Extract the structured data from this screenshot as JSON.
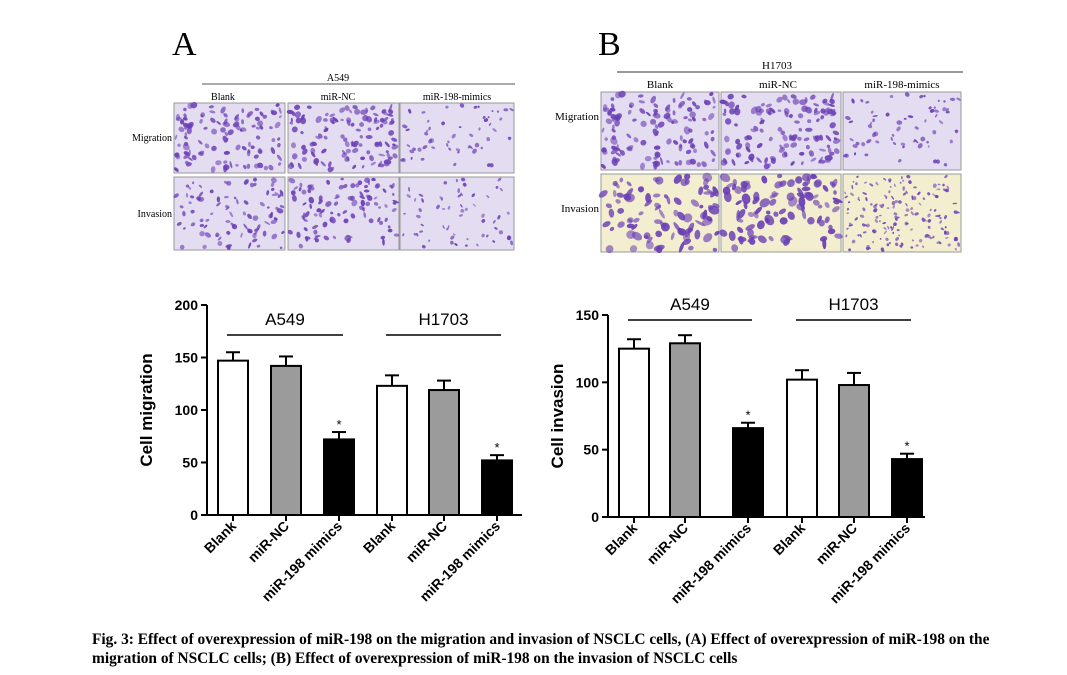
{
  "panels": {
    "a": {
      "letter": "A",
      "cell_line": "A549",
      "conditions": [
        "Blank",
        "miR-NC",
        "miR-198-mimics"
      ],
      "rows": [
        "Migration",
        "Invasion"
      ]
    },
    "b": {
      "letter": "B",
      "cell_line": "H1703",
      "conditions": [
        "Blank",
        "miR-NC",
        "miR-198-mimics"
      ],
      "rows": [
        "Migration",
        "Invasion"
      ]
    }
  },
  "colors": {
    "stain": "#6a3fb5",
    "background_light": "#e4dcf0",
    "background_yellow": "#f3eecf",
    "grey_bar": "#9b9b9b",
    "black_bar": "#000000",
    "white_bar": "#ffffff"
  },
  "chart_data": [
    {
      "type": "bar",
      "ylabel": "Cell migration",
      "ylim": [
        0,
        200
      ],
      "yticks": [
        0,
        50,
        100,
        150,
        200
      ],
      "categories": [
        "Blank",
        "miR-NC",
        "miR-198 mimics",
        "Blank",
        "miR-NC",
        "miR-198 mimics"
      ],
      "groups": [
        {
          "label": "A549",
          "categories": [
            "Blank",
            "miR-NC",
            "miR-198 mimics"
          ]
        },
        {
          "label": "H1703",
          "categories": [
            "Blank",
            "miR-NC",
            "miR-198 mimics"
          ]
        }
      ],
      "values": [
        147,
        142,
        72,
        123,
        119,
        52
      ],
      "errors": [
        8,
        9,
        7,
        10,
        9,
        5
      ],
      "fills": [
        "white",
        "grey",
        "black",
        "white",
        "grey",
        "black"
      ],
      "significance": [
        "",
        "",
        "*",
        "",
        "",
        "*"
      ]
    },
    {
      "type": "bar",
      "ylabel": "Cell invasion",
      "ylim": [
        0,
        150
      ],
      "yticks": [
        0,
        50,
        100,
        150
      ],
      "categories": [
        "Blank",
        "miR-NC",
        "miR-198 mimics",
        "Blank",
        "miR-NC",
        "miR-198 mimics"
      ],
      "groups": [
        {
          "label": "A549",
          "categories": [
            "Blank",
            "miR-NC",
            "miR-198 mimics"
          ]
        },
        {
          "label": "H1703",
          "categories": [
            "Blank",
            "miR-NC",
            "miR-198 mimics"
          ]
        }
      ],
      "values": [
        125,
        129,
        66,
        102,
        98,
        43
      ],
      "errors": [
        7,
        6,
        4,
        7,
        9,
        4
      ],
      "fills": [
        "white",
        "grey",
        "black",
        "white",
        "grey",
        "black"
      ],
      "significance": [
        "",
        "",
        "*",
        "",
        "",
        "*"
      ]
    }
  ],
  "caption": "Fig. 3: Effect of overexpression of miR-198 on the migration and invasion of NSCLC cells, (A) Effect of overexpression of miR-198 on the migration of NSCLC cells; (B) Effect of overexpression of miR-198 on the invasion of NSCLC cells"
}
